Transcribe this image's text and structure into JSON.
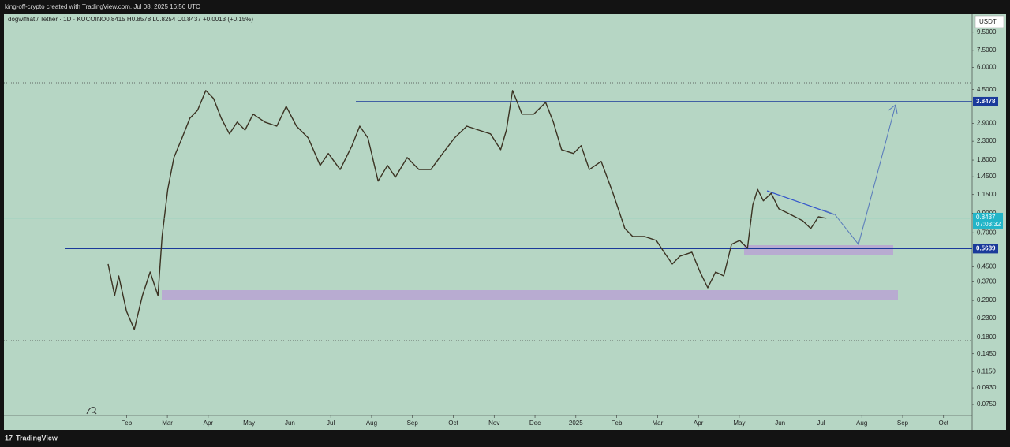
{
  "chart_data": {
    "type": "line",
    "credit": "king-off-crypto created with TradingView.com, Jul 08, 2025 16:56 UTC",
    "title": "dogwifhat / Tether · 1D · KUCOIN",
    "ohlc": "O0.8415 H0.8578 L0.8254 C0.8437 +0.0013 (+0.15%)",
    "currency": "USDT",
    "brand": "TradingView",
    "log_scale": true,
    "grid": false,
    "ylim": [
      0.065,
      12
    ],
    "xlim": [
      -1,
      22.7
    ],
    "yticks": [
      {
        "value": 9.5,
        "label": "9.5000"
      },
      {
        "value": 7.5,
        "label": "7.5000"
      },
      {
        "value": 6,
        "label": "6.0000"
      },
      {
        "value": 4.5,
        "label": "4.5000"
      },
      {
        "value": 2.9,
        "label": "2.9000"
      },
      {
        "value": 2.3,
        "label": "2.3000"
      },
      {
        "value": 1.8,
        "label": "1.8000"
      },
      {
        "value": 1.45,
        "label": "1.4500"
      },
      {
        "value": 1.15,
        "label": "1.1500"
      },
      {
        "value": 0.9,
        "label": "0.9000"
      },
      {
        "value": 0.7,
        "label": "0.7000"
      },
      {
        "value": 0.45,
        "label": "0.4500"
      },
      {
        "value": 0.37,
        "label": "0.3700"
      },
      {
        "value": 0.29,
        "label": "0.2900"
      },
      {
        "value": 0.23,
        "label": "0.2300"
      },
      {
        "value": 0.18,
        "label": "0.1800"
      },
      {
        "value": 0.145,
        "label": "0.1450"
      },
      {
        "value": 0.115,
        "label": "0.1150"
      },
      {
        "value": 0.093,
        "label": "0.0930"
      },
      {
        "value": 0.075,
        "label": "0.0750"
      }
    ],
    "xticks": [
      {
        "value": 2,
        "label": "Feb"
      },
      {
        "value": 3,
        "label": "Mar"
      },
      {
        "value": 4,
        "label": "Apr"
      },
      {
        "value": 5,
        "label": "May"
      },
      {
        "value": 6,
        "label": "Jun"
      },
      {
        "value": 7,
        "label": "Jul"
      },
      {
        "value": 8,
        "label": "Aug"
      },
      {
        "value": 9,
        "label": "Sep"
      },
      {
        "value": 10,
        "label": "Oct"
      },
      {
        "value": 11,
        "label": "Nov"
      },
      {
        "value": 12,
        "label": "Dec"
      },
      {
        "value": 13,
        "label": "2025"
      },
      {
        "value": 14,
        "label": "Feb"
      },
      {
        "value": 15,
        "label": "Mar"
      },
      {
        "value": 16,
        "label": "Apr"
      },
      {
        "value": 17,
        "label": "May"
      },
      {
        "value": 18,
        "label": "Jun"
      },
      {
        "value": 19,
        "label": "Jul"
      },
      {
        "value": 20,
        "label": "Aug"
      },
      {
        "value": 21,
        "label": "Sep"
      },
      {
        "value": 22,
        "label": "Oct"
      }
    ],
    "levels": [
      3.8478,
      0.5689
    ],
    "last_price": 0.8437,
    "countdown": "07:03:32",
    "series": [
      {
        "name": "WIFUSDT",
        "color": "#3b3222",
        "x": [
          1.55,
          1.71,
          1.81,
          2.0,
          2.19,
          2.39,
          2.58,
          2.77,
          2.87,
          3.01,
          3.16,
          3.36,
          3.55,
          3.74,
          3.94,
          4.13,
          4.32,
          4.52,
          4.71,
          4.9,
          5.1,
          5.39,
          5.68,
          5.91,
          6.16,
          6.45,
          6.74,
          6.94,
          7.23,
          7.52,
          7.71,
          7.91,
          8.16,
          8.39,
          8.58,
          8.87,
          9.16,
          9.45,
          9.74,
          10.03,
          10.33,
          10.62,
          10.91,
          11.16,
          11.3,
          11.45,
          11.68,
          11.97,
          12.26,
          12.45,
          12.65,
          12.94,
          13.13,
          13.33,
          13.62,
          13.91,
          14.2,
          14.39,
          14.68,
          14.97,
          15.16,
          15.36,
          15.55,
          15.84,
          16.04,
          16.23,
          16.42,
          16.62,
          16.81,
          17.01,
          17.2,
          17.33,
          17.45,
          17.59,
          17.78,
          17.97,
          18.17,
          18.36,
          18.55,
          18.75,
          18.94,
          19.13
        ],
        "values": [
          0.466,
          0.309,
          0.399,
          0.252,
          0.199,
          0.309,
          0.42,
          0.309,
          0.667,
          1.23,
          1.86,
          2.4,
          3.1,
          3.44,
          4.45,
          4.01,
          3.1,
          2.53,
          2.95,
          2.66,
          3.27,
          2.95,
          2.8,
          3.62,
          2.8,
          2.4,
          1.68,
          1.96,
          1.59,
          2.17,
          2.8,
          2.4,
          1.37,
          1.68,
          1.44,
          1.86,
          1.59,
          1.59,
          1.96,
          2.4,
          2.8,
          2.66,
          2.53,
          2.06,
          2.66,
          4.45,
          3.27,
          3.27,
          3.81,
          2.95,
          2.06,
          1.96,
          2.17,
          1.59,
          1.77,
          1.17,
          0.739,
          0.667,
          0.667,
          0.633,
          0.543,
          0.466,
          0.516,
          0.543,
          0.42,
          0.342,
          0.42,
          0.399,
          0.602,
          0.633,
          0.572,
          1.005,
          1.23,
          1.06,
          1.17,
          0.955,
          0.907,
          0.862,
          0.819,
          0.739,
          0.862,
          0.8437
        ]
      }
    ]
  }
}
